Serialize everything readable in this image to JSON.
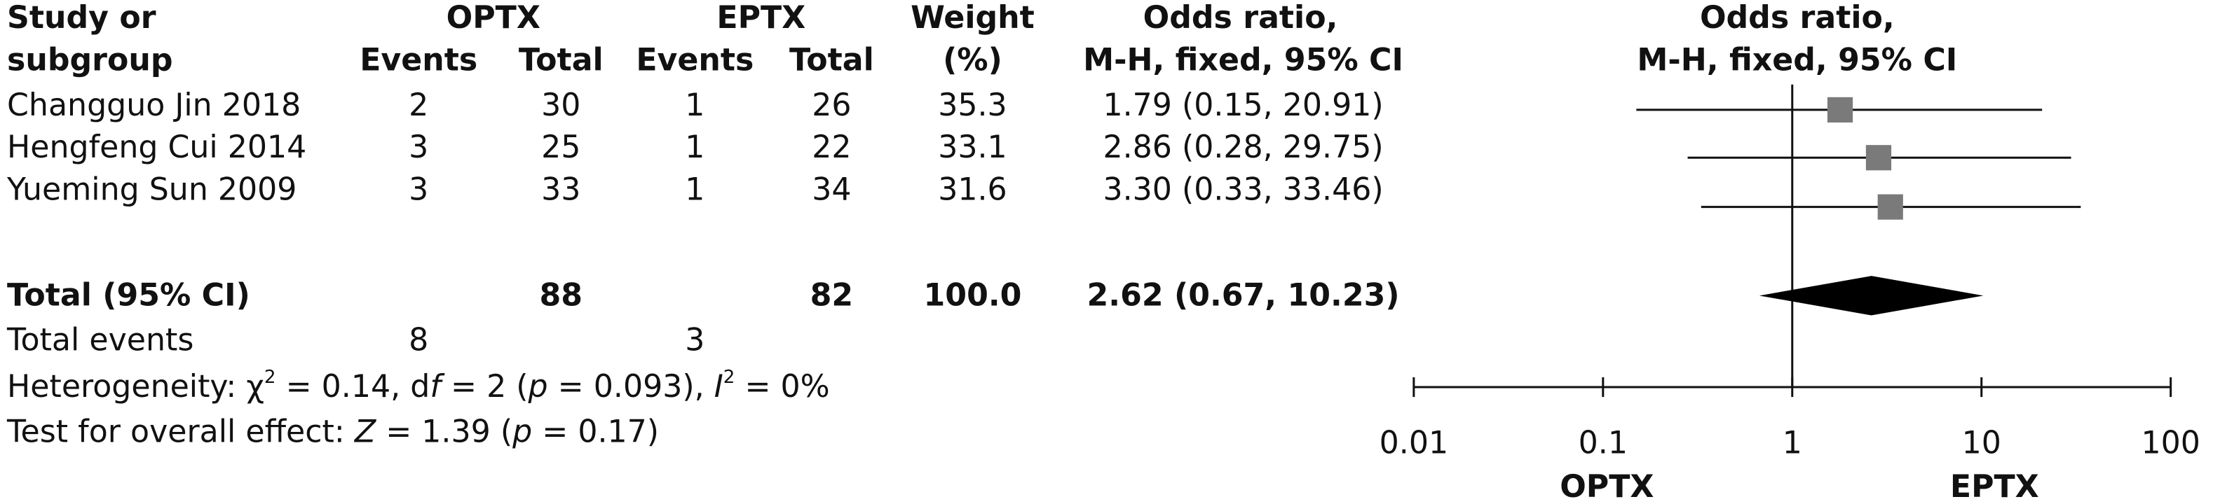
{
  "chart_data": {
    "type": "forest",
    "headers": {
      "study": [
        "Study or",
        "subgroup"
      ],
      "group1": "OPTX",
      "group2": "EPTX",
      "events": "Events",
      "total": "Total",
      "weight": [
        "Weight",
        "(%)"
      ],
      "or": [
        "Odds ratio,",
        "M-H, fixed, 95% CI"
      ],
      "plot": [
        "Odds ratio,",
        "M-H, fixed, 95% CI"
      ]
    },
    "categories": [
      "Changguo Jin 2018",
      "Hengfeng Cui 2014",
      "Yueming Sun 2009"
    ],
    "group1_events": [
      2,
      3,
      3
    ],
    "group1_total": [
      30,
      25,
      33
    ],
    "group2_events": [
      1,
      1,
      1
    ],
    "group2_total": [
      26,
      22,
      34
    ],
    "weights": [
      35.3,
      33.1,
      31.6
    ],
    "values": [
      1.79,
      2.86,
      3.3
    ],
    "ci_low": [
      0.15,
      0.28,
      0.33
    ],
    "ci_high": [
      20.91,
      29.75,
      33.46
    ],
    "value_labels": [
      "1.79 (0.15, 20.91)",
      "2.86 (0.28, 29.75)",
      "3.30 (0.33, 33.46)"
    ],
    "color": "#7a7a7a",
    "total": {
      "name": "Total (95% CI)",
      "group1_total": 88,
      "group2_total": 82,
      "weight": {
        "value": 100,
        "label": "100.0"
      },
      "value": 2.62,
      "ci_low": 0.67,
      "ci_high": 10.23,
      "value_label": "2.62 (0.67, 10.23)"
    },
    "total_events": {
      "name": "Total events",
      "group1": 8,
      "group2": 3
    },
    "heterogeneity": [
      "Heterogeneity: χ",
      "2",
      " = 0.14, d",
      "f",
      " = 2 (",
      "p",
      " = 0.093), ",
      "I",
      "2",
      " = 0%"
    ],
    "overall_effect": [
      "Test for overall effect: ",
      "Z",
      " = 1.39 (",
      "p",
      " = 0.17)"
    ],
    "log_scale": true,
    "xlim": [
      0.01,
      100
    ],
    "xticks": [
      0.01,
      0.1,
      1,
      10,
      100
    ],
    "x_labels": [
      "OPTX",
      "EPTX"
    ]
  }
}
